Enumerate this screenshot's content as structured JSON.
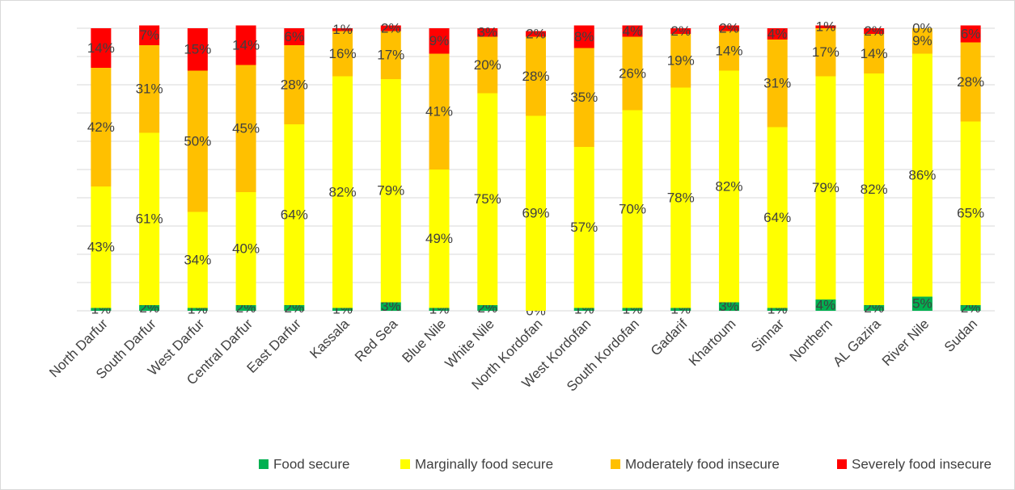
{
  "chart_data": {
    "type": "stacked_bar",
    "categories": [
      "North Darfur",
      "South Darfur",
      "West Darfur",
      "Central Darfur",
      "East Darfur",
      "Kassala",
      "Red Sea",
      "Blue Nile",
      "White Nile",
      "North Kordofan",
      "West Kordofan",
      "South Kordofan",
      "Gadarif",
      "Khartoum",
      "Sinnar",
      "Northern",
      "AL Gazira",
      "River Nile",
      "Sudan"
    ],
    "series": [
      {
        "name": "Food secure",
        "color": "#00b050",
        "values": [
          1,
          2,
          1,
          2,
          2,
          1,
          3,
          1,
          2,
          0,
          1,
          1,
          1,
          3,
          1,
          4,
          2,
          5,
          2
        ],
        "value_labels": [
          "1%",
          "2%",
          "1%",
          "2%",
          "2%",
          "1%",
          "3%",
          "1%",
          "2%",
          "0%",
          "1%",
          "1%",
          "1%",
          "3%",
          "1%",
          "4%",
          "2%",
          "5%",
          "2%"
        ]
      },
      {
        "name": "Marginally food secure",
        "color": "#ffff00",
        "values": [
          43,
          61,
          34,
          40,
          64,
          82,
          79,
          49,
          75,
          69,
          57,
          70,
          78,
          82,
          64,
          79,
          82,
          86,
          65
        ],
        "value_labels": [
          "43%",
          "61%",
          "34%",
          "40%",
          "64%",
          "82%",
          "79%",
          "49%",
          "75%",
          "69%",
          "57%",
          "70%",
          "78%",
          "82%",
          "64%",
          "79%",
          "82%",
          "86%",
          "65%"
        ]
      },
      {
        "name": "Moderately food insecure",
        "color": "#ffc000",
        "values": [
          42,
          31,
          50,
          45,
          28,
          16,
          17,
          41,
          20,
          28,
          35,
          26,
          19,
          14,
          31,
          17,
          14,
          9,
          28
        ],
        "value_labels": [
          "42%",
          "31%",
          "50%",
          "45%",
          "28%",
          "16%",
          "17%",
          "41%",
          "20%",
          "28%",
          "35%",
          "26%",
          "19%",
          "14%",
          "31%",
          "17%",
          "14%",
          "9%",
          "28%"
        ]
      },
      {
        "name": "Severely food insecure",
        "color": "#ff0000",
        "values": [
          14,
          7,
          15,
          14,
          6,
          1,
          2,
          9,
          3,
          2,
          8,
          4,
          2,
          2,
          4,
          1,
          2,
          0,
          6
        ],
        "value_labels": [
          "14%",
          "7%",
          "15%",
          "14%",
          "6%",
          "1%",
          "2%",
          "9%",
          "3%",
          "2%",
          "8%",
          "4%",
          "2%",
          "2%",
          "4%",
          "1%",
          "2%",
          "0%",
          "6%"
        ]
      }
    ],
    "ylim": [
      0,
      100
    ],
    "yticks": [
      0,
      10,
      20,
      30,
      40,
      50,
      60,
      70,
      80,
      90,
      100
    ],
    "grid": true,
    "legend": "bottom"
  }
}
